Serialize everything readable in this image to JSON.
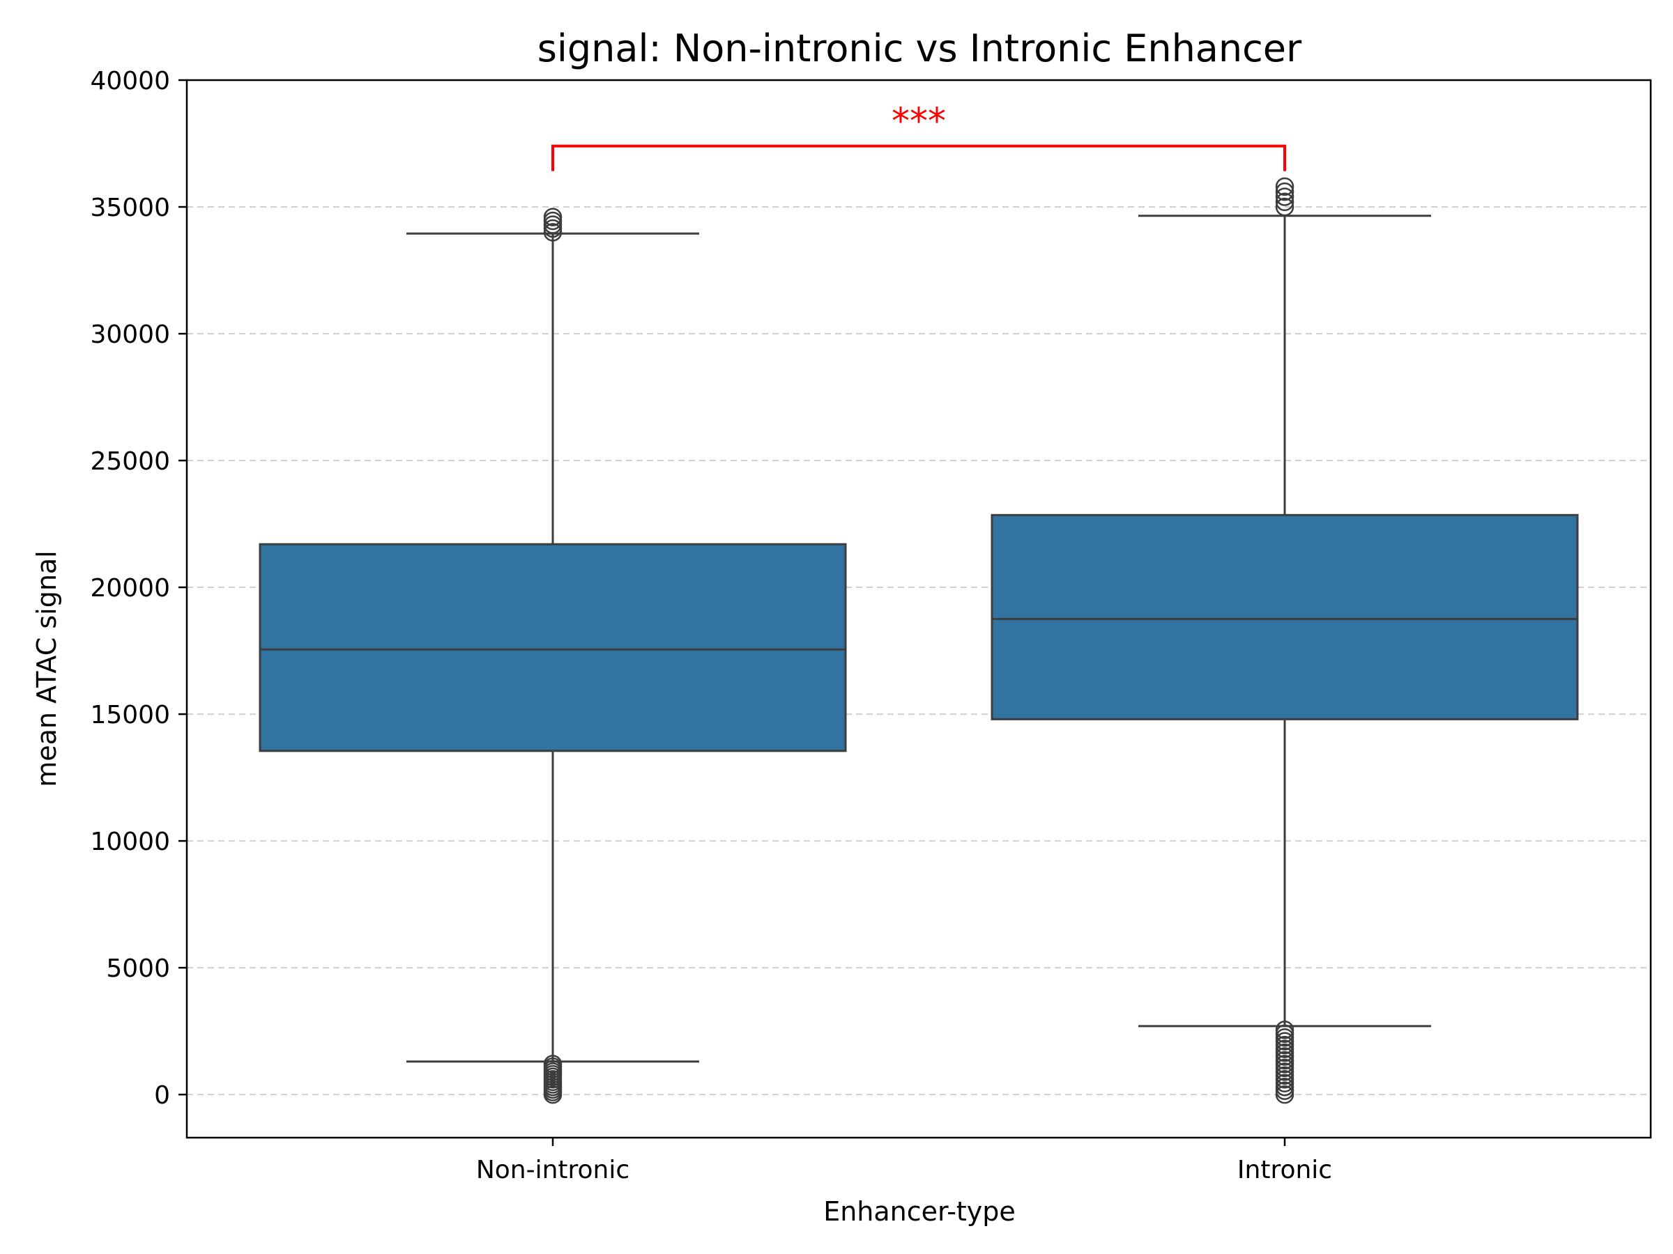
{
  "chart_data": {
    "type": "box",
    "title": "signal: Non-intronic vs Intronic Enhancer",
    "xlabel": "Enhancer-type",
    "ylabel": "mean ATAC signal",
    "ylim": [
      -1700,
      40000
    ],
    "yticks": [
      0,
      5000,
      10000,
      15000,
      20000,
      25000,
      30000,
      35000,
      40000
    ],
    "categories": [
      "Non-intronic",
      "Intronic"
    ],
    "grid": "y dashed",
    "box_color": "#3274a1",
    "edge_color": "#3d3d3d",
    "boxes": [
      {
        "category": "Non-intronic",
        "whisker_low": 1300,
        "q1": 13550,
        "median": 17550,
        "q3": 21700,
        "whisker_high": 33950,
        "outliers": [
          0,
          100,
          200,
          300,
          400,
          500,
          600,
          700,
          800,
          900,
          1000,
          1100,
          1200,
          34000,
          34150,
          34300,
          34450,
          34600
        ]
      },
      {
        "category": "Intronic",
        "whisker_low": 2700,
        "q1": 14800,
        "median": 18750,
        "q3": 22850,
        "whisker_high": 34650,
        "outliers": [
          0,
          150,
          300,
          450,
          600,
          750,
          900,
          1050,
          1200,
          1350,
          1500,
          1650,
          1800,
          1950,
          2100,
          2250,
          2400,
          2550,
          35000,
          35200,
          35400,
          35600,
          35800
        ]
      }
    ],
    "significance": {
      "label": "***",
      "from": "Non-intronic",
      "to": "Intronic",
      "y": 37400,
      "color": "#ff0000"
    }
  }
}
